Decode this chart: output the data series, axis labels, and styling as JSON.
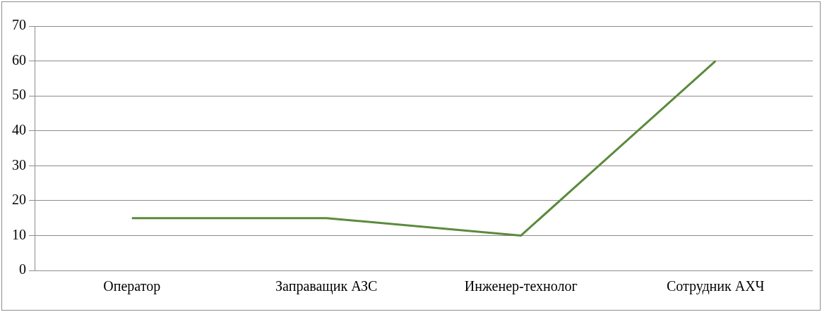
{
  "chart_data": {
    "type": "line",
    "categories": [
      "Оператор",
      "Заправащик АЗС",
      "Инженер-технолог",
      "Сотрудник АХЧ"
    ],
    "series": [
      {
        "color": "#5b8a3c",
        "values": [
          15,
          15,
          10,
          60
        ]
      }
    ],
    "ylim": [
      0,
      70
    ],
    "yticks": [
      0,
      10,
      20,
      30,
      40,
      50,
      60,
      70
    ],
    "grid": "y",
    "legend": false,
    "marker": "none",
    "line_style": "solid"
  }
}
